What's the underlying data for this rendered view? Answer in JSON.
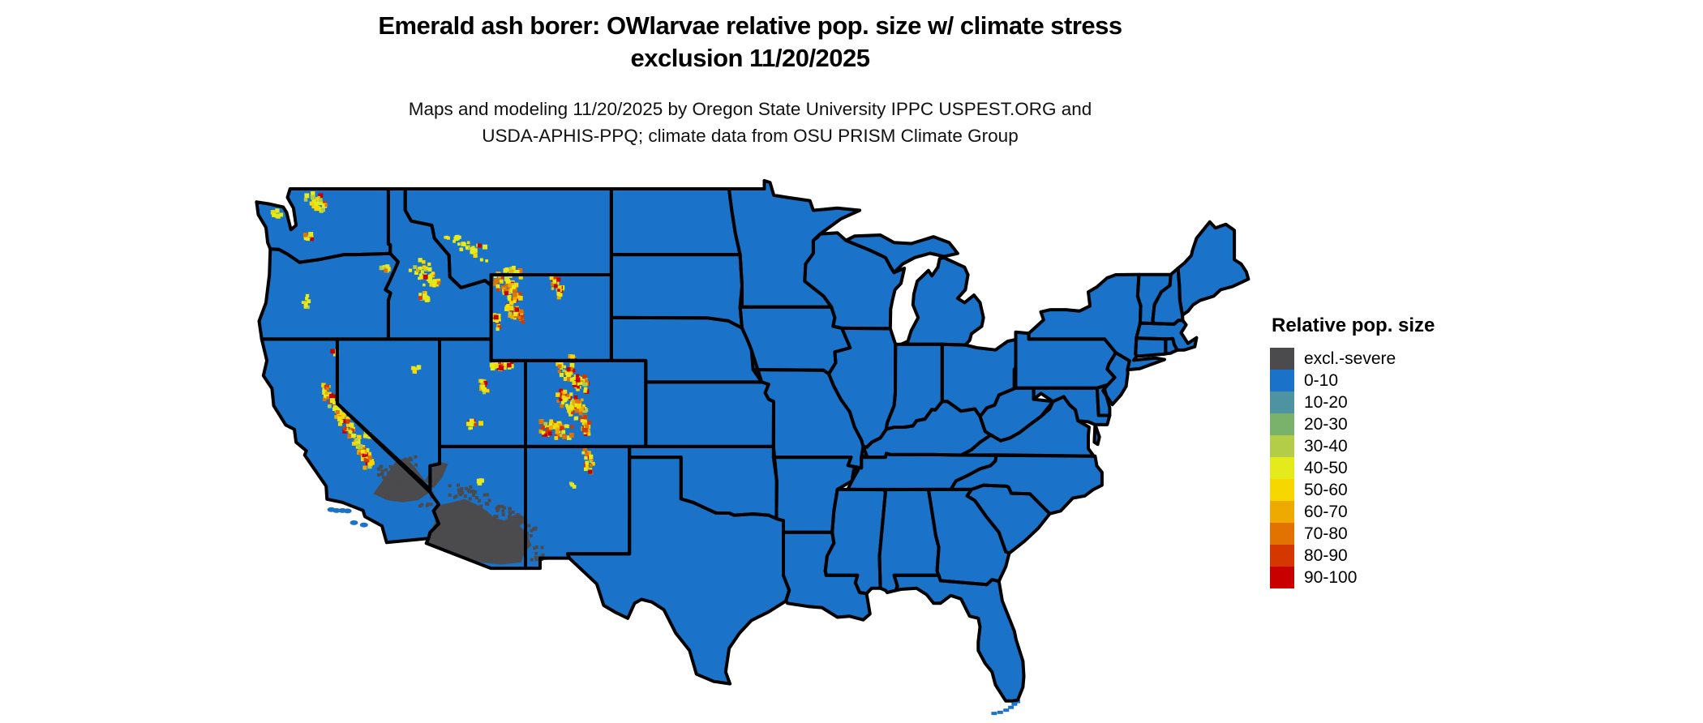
{
  "header": {
    "title_line1": "Emerald ash borer: OWlarvae relative pop. size w/ climate stress",
    "title_line2": "exclusion 11/20/2025",
    "subtitle_line1": "Maps and modeling 11/20/2025 by Oregon State University IPPC USPEST.ORG and",
    "subtitle_line2": "USDA-APHIS-PPQ; climate data from OSU PRISM Climate Group"
  },
  "legend": {
    "title": "Relative pop. size",
    "items": [
      {
        "label": "excl.-severe",
        "color": "#4b4b4d"
      },
      {
        "label": "0-10",
        "color": "#1a73c9"
      },
      {
        "label": "10-20",
        "color": "#4d93a2"
      },
      {
        "label": "20-30",
        "color": "#7bb26b"
      },
      {
        "label": "30-40",
        "color": "#b4cd49"
      },
      {
        "label": "40-50",
        "color": "#e5ea1c"
      },
      {
        "label": "50-60",
        "color": "#f6d700"
      },
      {
        "label": "60-70",
        "color": "#efaa00"
      },
      {
        "label": "70-80",
        "color": "#e27300"
      },
      {
        "label": "80-90",
        "color": "#d43800"
      },
      {
        "label": "90-100",
        "color": "#c80000"
      }
    ]
  },
  "map": {
    "fill_color": "#1a73c9",
    "exclusion_color": "#4b4b4d",
    "border_color": "#000000",
    "background_color": "#ffffff"
  }
}
